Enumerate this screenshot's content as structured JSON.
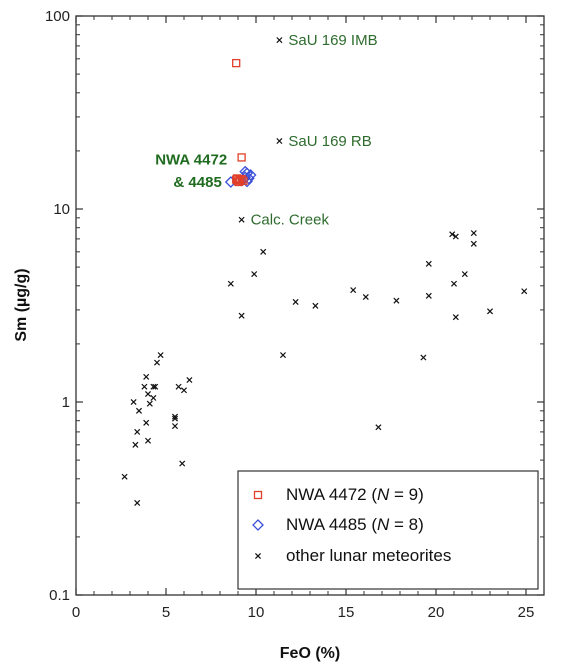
{
  "chart_data": {
    "type": "scatter",
    "xlabel": "FeO  (%)",
    "ylabel": "Sm  (µg/g)",
    "xlim": [
      0,
      26
    ],
    "ylim": [
      0.1,
      100
    ],
    "y_scale": "log",
    "x_ticks": [
      "0",
      "5",
      "10",
      "15",
      "20",
      "25"
    ],
    "y_ticks": [
      "0.1",
      "1",
      "10",
      "100"
    ],
    "legend_position": "bottom-right",
    "series": [
      {
        "name": "NWA 4472",
        "italic_n": "N",
        "n_value": "= 9)",
        "marker": "square",
        "color": "#e0402a",
        "points": [
          [
            8.9,
            57
          ],
          [
            9.2,
            18.5
          ],
          [
            8.9,
            14.2
          ],
          [
            9.0,
            13.9
          ],
          [
            9.1,
            14.1
          ],
          [
            9.2,
            14.3
          ],
          [
            9.3,
            14.0
          ],
          [
            8.95,
            14.4
          ],
          [
            9.05,
            13.8
          ]
        ]
      },
      {
        "name": "NWA 4485",
        "italic_n": "N",
        "n_value": "= 8)",
        "marker": "diamond",
        "color": "#3a4fd8",
        "points": [
          [
            8.6,
            13.8
          ],
          [
            9.3,
            14.2
          ],
          [
            9.4,
            14.6
          ],
          [
            9.5,
            15.3
          ],
          [
            9.6,
            14.4
          ],
          [
            9.7,
            15.0
          ],
          [
            9.5,
            13.9
          ],
          [
            9.4,
            15.6
          ]
        ]
      },
      {
        "name": "other lunar meteorites",
        "marker": "x",
        "color": "#111111",
        "points": [
          [
            11.3,
            75
          ],
          [
            11.3,
            22.5
          ],
          [
            9.2,
            8.8
          ],
          [
            10.4,
            6.0
          ],
          [
            9.9,
            4.6
          ],
          [
            8.6,
            4.1
          ],
          [
            9.2,
            2.8
          ],
          [
            11.5,
            1.75
          ],
          [
            12.2,
            3.3
          ],
          [
            13.3,
            3.15
          ],
          [
            15.4,
            3.8
          ],
          [
            16.1,
            3.5
          ],
          [
            17.8,
            3.35
          ],
          [
            16.8,
            0.74
          ],
          [
            19.3,
            1.7
          ],
          [
            19.6,
            5.2
          ],
          [
            19.6,
            3.55
          ],
          [
            20.9,
            7.4
          ],
          [
            21.1,
            7.2
          ],
          [
            21.0,
            4.1
          ],
          [
            21.1,
            2.75
          ],
          [
            21.6,
            4.6
          ],
          [
            22.1,
            7.5
          ],
          [
            22.1,
            6.6
          ],
          [
            23.0,
            2.95
          ],
          [
            24.9,
            3.75
          ],
          [
            2.7,
            0.41
          ],
          [
            3.2,
            1.0
          ],
          [
            3.3,
            0.6
          ],
          [
            3.4,
            0.3
          ],
          [
            3.4,
            0.7
          ],
          [
            3.5,
            0.9
          ],
          [
            3.8,
            1.2
          ],
          [
            3.9,
            1.35
          ],
          [
            3.9,
            0.78
          ],
          [
            4.0,
            1.1
          ],
          [
            4.0,
            0.63
          ],
          [
            4.1,
            0.98
          ],
          [
            4.3,
            1.05
          ],
          [
            4.3,
            1.2
          ],
          [
            4.4,
            1.2
          ],
          [
            4.5,
            1.6
          ],
          [
            4.7,
            1.75
          ],
          [
            5.5,
            0.75
          ],
          [
            5.5,
            0.82
          ],
          [
            5.5,
            0.84
          ],
          [
            5.7,
            1.2
          ],
          [
            5.9,
            0.48
          ],
          [
            6.0,
            1.15
          ],
          [
            6.3,
            1.3
          ]
        ]
      }
    ],
    "annotations": [
      {
        "text": "SaU 169 IMB",
        "x": 11.8,
        "y": 75,
        "style": "normal"
      },
      {
        "text": "SaU 169 RB",
        "x": 11.8,
        "y": 22.5,
        "style": "normal"
      },
      {
        "text": "Calc. Creek",
        "x": 9.7,
        "y": 8.8,
        "style": "normal"
      },
      {
        "text": "NWA 4472",
        "x": 8.4,
        "y": 18.0,
        "style": "bold"
      },
      {
        "text": "& 4485",
        "x": 8.1,
        "y": 13.8,
        "style": "bold"
      }
    ]
  }
}
